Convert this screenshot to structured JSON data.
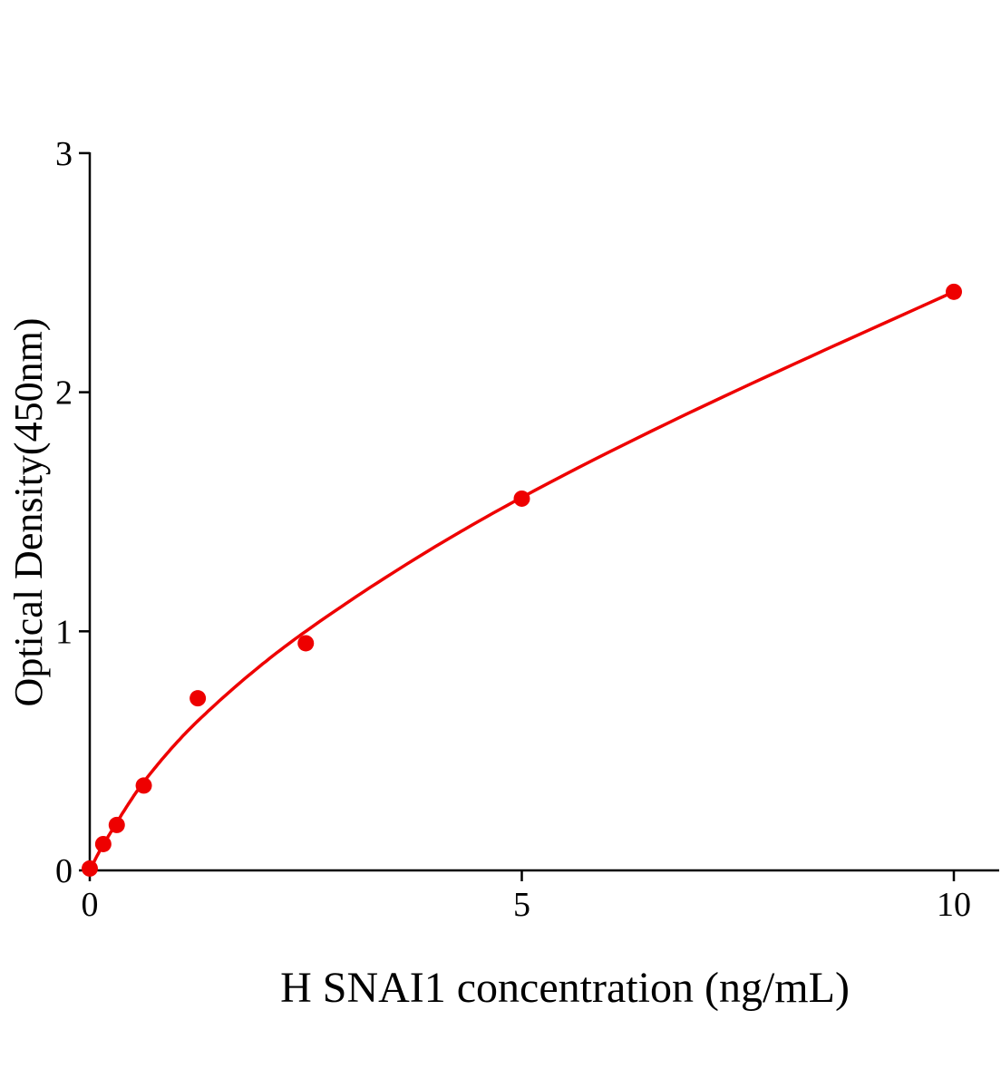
{
  "chart_data": {
    "type": "scatter",
    "title": "",
    "xlabel": "H SNAI1 concentration (ng/mL)",
    "ylabel": "Optical Density(450nm)",
    "xlim": [
      0,
      10.5
    ],
    "ylim": [
      0,
      3
    ],
    "xticks": [
      "0",
      "5",
      "10"
    ],
    "yticks": [
      "0",
      "1",
      "2",
      "3"
    ],
    "grid": false,
    "legend": "none",
    "series": [
      {
        "x": [
          0,
          0.156,
          0.3125,
          0.625,
          1.25,
          2.5,
          5,
          10
        ],
        "y": [
          0.008,
          0.11,
          0.19,
          0.355,
          0.72,
          0.95,
          1.555,
          2.42
        ],
        "color": "#ee0000",
        "marker": "circle",
        "fit_curve": true
      }
    ]
  }
}
